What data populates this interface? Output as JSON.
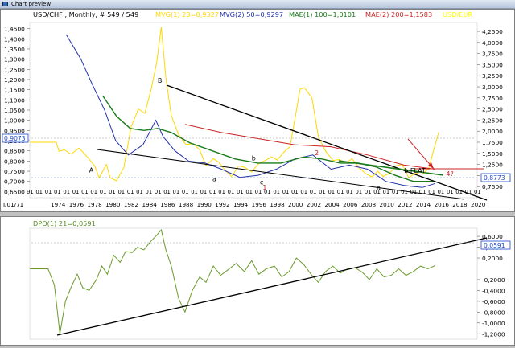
{
  "window": {
    "title": "Chart preview"
  },
  "header": {
    "symbol": "USD/CHF , Monthly, # 549 / 549",
    "ind1": {
      "text": "MVG(1) 23=0,9327",
      "color": "#ffd700"
    },
    "ind2": {
      "text": "MVG(2) 50=0,9297",
      "color": "#2233aa"
    },
    "ind3": {
      "text": "MAE(1) 100=1,0101",
      "color": "#1a7a1a"
    },
    "ind4": {
      "text": "MAE(2) 200=1,1583",
      "color": "#cc2222"
    },
    "ind5": {
      "text": "USD/EUR",
      "color": "#ffff00"
    }
  },
  "lower_header": {
    "text": "DPO(1) 21=0,0591",
    "color": "#558822"
  },
  "date_start_label": "I/01/71",
  "price_boxes": {
    "left": {
      "text": "0,9073",
      "color": "#1c46c8"
    },
    "right1": {
      "text": "0,8773",
      "color": "#1c46c8"
    },
    "right2": {
      "text": "0,0591",
      "color": "#1c46c8"
    }
  },
  "chart_data": [
    {
      "type": "line",
      "title": "USD/CHF , Monthly, # 549 / 549",
      "x_ticks": [
        "1974",
        "1976",
        "1978",
        "1980",
        "1982",
        "1984",
        "1986",
        "1988",
        "1990",
        "1992",
        "1994",
        "1996",
        "1998",
        "2000",
        "2002",
        "2004",
        "2006",
        "2008",
        "2010",
        "2012",
        "2014",
        "2016",
        "2018",
        "2020"
      ],
      "month_marker": "01",
      "left_axis": {
        "ticks": [
          "1,4500",
          "1,4000",
          "1,3500",
          "1,3000",
          "1,2500",
          "1,2000",
          "1,1500",
          "1,1000",
          "1,0500",
          "1,0000",
          "0,9500",
          "0,9000",
          "0,8500",
          "0,8000",
          "0,7500",
          "0,7000",
          "0,6500"
        ],
        "range": [
          0.62,
          1.48
        ]
      },
      "right_axis": {
        "ticks": [
          "4,2500",
          "4,0000",
          "3,7500",
          "3,5000",
          "3,2500",
          "3,0000",
          "2,7500",
          "2,5000",
          "2,2500",
          "2,0000",
          "1,7500",
          "1,5000",
          "1,2500",
          "1,0000",
          "0,7500"
        ],
        "range": [
          0.5,
          4.45
        ]
      },
      "series": [
        {
          "name": "MVG(1) 23",
          "color": "#ffd700",
          "x": [
            1971.0,
            1973.9,
            1974.2,
            1974.8,
            1975.5,
            1976.4,
            1977.3,
            1978.1,
            1978.6,
            1979.4,
            1979.8,
            1980.5,
            1981.3,
            1982.1,
            1982.9,
            1983.6,
            1984.3,
            1984.9,
            1985.4,
            1985.9,
            1986.5,
            1987.3,
            1988.1,
            1988.9,
            1989.6,
            1990.3,
            1991.1,
            1991.7,
            1992.4,
            1993.1,
            1993.9,
            1994.6,
            1995.3,
            1996.1,
            1996.8,
            1997.5,
            1998.1,
            1998.8,
            1999.5,
            2000.1,
            2000.6,
            2001.1,
            2001.9,
            2002.6,
            2003.4,
            2004.2,
            2004.9,
            2005.6,
            2006.3,
            2007.1,
            2007.8,
            2008.5,
            2009.1,
            2009.7,
            2010.4,
            2011.1,
            2011.8,
            2012.5,
            2013.2,
            2014.0,
            2014.7,
            2015.2,
            2015.8
          ],
          "y": [
            1.75,
            1.75,
            1.55,
            1.58,
            1.48,
            1.62,
            1.42,
            1.22,
            0.95,
            1.25,
            0.95,
            0.88,
            1.18,
            2.1,
            2.5,
            2.4,
            2.95,
            3.55,
            4.35,
            3.2,
            2.35,
            1.92,
            1.7,
            1.72,
            1.58,
            1.22,
            1.38,
            1.3,
            1.12,
            0.98,
            1.22,
            1.18,
            1.08,
            1.28,
            1.34,
            1.42,
            1.35,
            1.52,
            1.65,
            2.35,
            2.95,
            2.98,
            2.75,
            1.88,
            1.55,
            1.34,
            1.36,
            1.28,
            1.38,
            1.17,
            1.04,
            0.97,
            1.1,
            0.98,
            1.05,
            1.22,
            1.25,
            0.95,
            1.05,
            1.03,
            1.16,
            1.55,
            1.98
          ]
        },
        {
          "name": "MVG(2) 50",
          "color": "#2233aa",
          "x": [
            1975.0,
            1976.6,
            1977.8,
            1979.2,
            1980.4,
            1981.8,
            1983.4,
            1984.8,
            1985.6,
            1986.9,
            1988.4,
            1990.2,
            1992.0,
            1994.0,
            1996.0,
            1998.0,
            2000.0,
            2002.0,
            2004.0,
            2006.0,
            2008.0,
            2010.0,
            2012.0,
            2014.0,
            2015.4
          ],
          "y": [
            1.42,
            1.3,
            1.18,
            1.05,
            0.9,
            0.83,
            0.88,
            1.0,
            0.92,
            0.85,
            0.8,
            0.79,
            0.76,
            0.72,
            0.73,
            0.76,
            0.81,
            0.83,
            0.76,
            0.78,
            0.76,
            0.7,
            0.68,
            0.67,
            0.69
          ]
        },
        {
          "name": "MAE(1) 100",
          "color": "#1a7a1a",
          "x": [
            1979.0,
            1980.5,
            1982.0,
            1983.5,
            1985.0,
            1986.5,
            1988.5,
            1991.0,
            1993.5,
            1996.0,
            1998.5,
            2001.0,
            2003.0,
            2005.0,
            2007.0,
            2009.0,
            2011.0,
            2013.0,
            2015.4
          ],
          "y": [
            1.12,
            1.02,
            0.96,
            0.95,
            0.96,
            0.94,
            0.89,
            0.85,
            0.81,
            0.79,
            0.79,
            0.82,
            0.81,
            0.79,
            0.79,
            0.77,
            0.73,
            0.7,
            0.7
          ]
        },
        {
          "name": "MAE(2) 200",
          "color": "#cc2222",
          "x": [
            1988.0,
            1992.0,
            1996.0,
            2000.0,
            2004.0,
            2008.0,
            2012.0,
            2015.4
          ],
          "y": [
            0.98,
            0.94,
            0.91,
            0.88,
            0.87,
            0.83,
            0.78,
            0.76
          ]
        }
      ],
      "annotations": [
        {
          "text": "A",
          "color": "#000000",
          "x": 1977.5,
          "y": 0.745
        },
        {
          "text": "B",
          "color": "#000000",
          "x": 1985.0,
          "y": 1.185
        },
        {
          "text": "a",
          "color": "#000000",
          "x": 1991.0,
          "y": 0.7
        },
        {
          "text": "b",
          "color": "#000000",
          "x": 1995.3,
          "y": 0.803
        },
        {
          "text": "c",
          "color": "#000000",
          "x": 1996.2,
          "y": 0.685
        },
        {
          "text": "1",
          "color": "#cc2222",
          "x": 1996.5,
          "y": 0.66
        },
        {
          "text": "2",
          "color": "#cc2222",
          "x": 2002.2,
          "y": 0.83
        },
        {
          "text": "a",
          "color": "#000000",
          "x": 2009.0,
          "y": 0.658
        },
        {
          "text": "b FLAT",
          "color": "#000000",
          "x": 2012.0,
          "y": 0.743
        },
        {
          "text": "4?",
          "color": "#cc2222",
          "x": 2016.6,
          "y": 0.726
        }
      ]
    },
    {
      "type": "line",
      "title": "DPO(1) 21=0,0591",
      "right_axis": {
        "ticks": [
          "0,6000",
          "0,4000",
          "0,2000",
          "-0,2000",
          "-0,4000",
          "-0,6000",
          "-0,8000",
          "-1,0000",
          "-1,2000"
        ],
        "range": [
          -1.3,
          0.75
        ]
      },
      "series": [
        {
          "name": "DPO(1) 21",
          "color": "#6a9a2a",
          "x": [
            1971.0,
            1973.0,
            1973.7,
            1974.3,
            1974.9,
            1975.5,
            1976.2,
            1976.8,
            1977.5,
            1978.3,
            1978.9,
            1979.5,
            1980.2,
            1980.9,
            1981.5,
            1982.2,
            1982.8,
            1983.5,
            1984.2,
            1984.9,
            1985.4,
            1985.9,
            1986.5,
            1987.3,
            1988.0,
            1988.8,
            1989.6,
            1990.3,
            1991.1,
            1991.9,
            1992.7,
            1993.6,
            1994.5,
            1995.3,
            1996.1,
            1996.9,
            1997.8,
            1998.6,
            1999.4,
            2000.2,
            2001.0,
            2001.8,
            2002.6,
            2003.4,
            2004.2,
            2005.0,
            2005.8,
            2006.6,
            2007.4,
            2008.2,
            2009.0,
            2009.8,
            2010.6,
            2011.4,
            2012.2,
            2013.0,
            2013.8,
            2014.6,
            2015.4
          ],
          "y": [
            0.0,
            0.0,
            -0.3,
            -1.2,
            -0.6,
            -0.35,
            -0.1,
            -0.35,
            -0.4,
            -0.2,
            0.05,
            -0.1,
            0.25,
            0.12,
            0.32,
            0.3,
            0.4,
            0.35,
            0.5,
            0.62,
            0.72,
            0.35,
            0.05,
            -0.55,
            -0.8,
            -0.4,
            -0.15,
            -0.25,
            0.05,
            -0.12,
            -0.02,
            0.1,
            -0.05,
            0.15,
            -0.1,
            0.0,
            0.05,
            -0.15,
            -0.05,
            0.2,
            0.08,
            -0.1,
            -0.25,
            -0.05,
            0.05,
            -0.08,
            0.0,
            0.02,
            -0.06,
            -0.2,
            0.0,
            -0.15,
            -0.12,
            0.0,
            -0.12,
            -0.05,
            0.05,
            0.0,
            0.06
          ]
        }
      ]
    }
  ]
}
